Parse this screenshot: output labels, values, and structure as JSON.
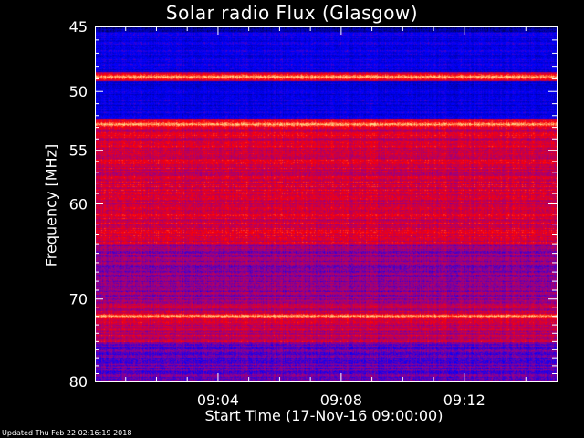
{
  "chart_data": {
    "type": "heatmap",
    "title": "Solar radio Flux (Glasgow)",
    "ylabel": "Frequency [MHz]",
    "xlabel": "Start Time (17-Nov-16 09:00:00)",
    "y_ticks": [
      "45",
      "50",
      "55",
      "60",
      "70",
      "80"
    ],
    "y_tick_values": [
      45,
      50,
      55,
      60,
      70,
      80
    ],
    "ylim": [
      45,
      80
    ],
    "x_ticks": [
      "09:04",
      "09:08",
      "09:12"
    ],
    "x_tick_minutes": [
      4,
      8,
      12
    ],
    "xlim_minutes": [
      0,
      15
    ],
    "bright_lines_mhz": [
      48.8,
      52.7,
      71.9
    ],
    "colormap": [
      "#000030",
      "#0000ff",
      "#8000a0",
      "#ff0000",
      "#ffff80"
    ]
  },
  "footer": {
    "updated": "Updated Thu Feb 22 02:16:19 2018"
  }
}
